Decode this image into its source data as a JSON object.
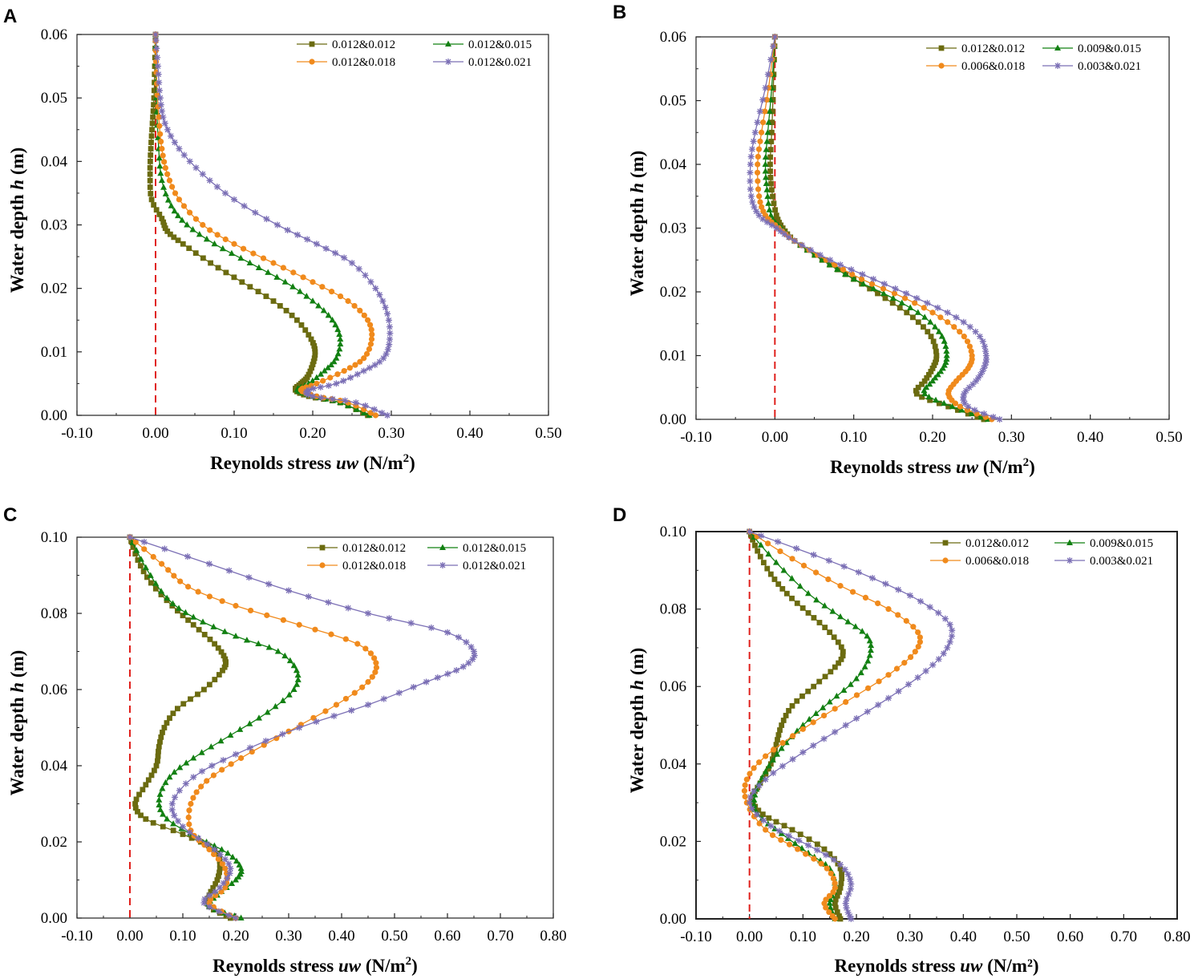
{
  "figure": {
    "panel_labels": [
      "A",
      "B",
      "C",
      "D"
    ]
  },
  "chart_data": [
    {
      "type": "line",
      "panel": "A",
      "xlabel_prefix": "Reynolds stress ",
      "xlabel_italic": "uw",
      "xlabel_unit_text": " (N/m",
      "xlabel_unit_sup": "2",
      "xlabel_unit_close": ")",
      "ylabel_prefix": "Water depth ",
      "ylabel_italic": "h",
      "ylabel_unit": " (m)",
      "xlim": [
        -0.1,
        0.5
      ],
      "ylim": [
        0,
        0.06
      ],
      "xticks": [
        "-0.10",
        "0.00",
        "0.10",
        "0.20",
        "0.30",
        "0.40",
        "0.50"
      ],
      "yticks": [
        "0.00",
        "0.01",
        "0.02",
        "0.03",
        "0.04",
        "0.05",
        "0.06"
      ],
      "reference_line_x": 0,
      "series": [
        {
          "name": "0.012&0.012",
          "color": "#6b6b10",
          "marker": "square",
          "x": [
            0.27,
            0.235,
            0.195,
            0.178,
            0.185,
            0.193,
            0.2,
            0.203,
            0.198,
            0.18,
            0.15,
            0.11,
            0.07,
            0.035,
            0.015,
            0.008,
            -0.005,
            -0.007,
            -0.006,
            -0.004,
            -0.002,
            -0.001,
            0.0
          ],
          "y": [
            0.0,
            0.002,
            0.003,
            0.004,
            0.005,
            0.006,
            0.008,
            0.01,
            0.012,
            0.015,
            0.018,
            0.021,
            0.024,
            0.027,
            0.029,
            0.031,
            0.034,
            0.038,
            0.042,
            0.046,
            0.05,
            0.055,
            0.06
          ]
        },
        {
          "name": "0.012&0.015",
          "color": "#128012",
          "marker": "triangle",
          "x": [
            0.272,
            0.235,
            0.2,
            0.18,
            0.195,
            0.215,
            0.23,
            0.235,
            0.225,
            0.2,
            0.165,
            0.12,
            0.075,
            0.04,
            0.02,
            0.008,
            0.004,
            0.001,
            0.0
          ],
          "y": [
            0.0,
            0.002,
            0.003,
            0.004,
            0.005,
            0.007,
            0.009,
            0.012,
            0.015,
            0.018,
            0.021,
            0.024,
            0.027,
            0.03,
            0.033,
            0.037,
            0.042,
            0.05,
            0.06
          ]
        },
        {
          "name": "0.012&0.018",
          "color": "#f08a1c",
          "marker": "circle",
          "x": [
            0.28,
            0.245,
            0.205,
            0.185,
            0.205,
            0.24,
            0.265,
            0.275,
            0.27,
            0.245,
            0.2,
            0.15,
            0.1,
            0.06,
            0.03,
            0.015,
            0.008,
            0.004,
            0.001,
            0.0
          ],
          "y": [
            0.0,
            0.002,
            0.003,
            0.004,
            0.005,
            0.007,
            0.009,
            0.012,
            0.015,
            0.018,
            0.021,
            0.024,
            0.027,
            0.03,
            0.034,
            0.038,
            0.042,
            0.047,
            0.054,
            0.06
          ]
        },
        {
          "name": "0.012&0.021",
          "color": "#7b6fb5",
          "marker": "star",
          "x": [
            0.295,
            0.255,
            0.2,
            0.195,
            0.23,
            0.265,
            0.29,
            0.298,
            0.295,
            0.28,
            0.25,
            0.205,
            0.155,
            0.1,
            0.06,
            0.03,
            0.012,
            0.006,
            0.003,
            0.0
          ],
          "y": [
            0.0,
            0.002,
            0.003,
            0.004,
            0.005,
            0.007,
            0.009,
            0.012,
            0.016,
            0.02,
            0.024,
            0.027,
            0.03,
            0.034,
            0.038,
            0.042,
            0.046,
            0.05,
            0.055,
            0.06
          ]
        }
      ]
    },
    {
      "type": "line",
      "panel": "B",
      "xlabel_prefix": "Reynolds stress ",
      "xlabel_italic": "uw",
      "xlabel_unit_text": " (N/m",
      "xlabel_unit_sup": "2",
      "xlabel_unit_close": ")",
      "ylabel_prefix": "Water depth ",
      "ylabel_italic": "h",
      "ylabel_unit": " (m)",
      "xlim": [
        -0.1,
        0.5
      ],
      "ylim": [
        0,
        0.06
      ],
      "xticks": [
        "-0.10",
        "0.00",
        "0.10",
        "0.20",
        "0.30",
        "0.40",
        "0.50"
      ],
      "yticks": [
        "0.00",
        "0.01",
        "0.02",
        "0.03",
        "0.04",
        "0.05",
        "0.06"
      ],
      "reference_line_x": 0,
      "series": [
        {
          "name": "0.012&0.012",
          "color": "#6b6b10",
          "marker": "square",
          "x": [
            0.265,
            0.22,
            0.18,
            0.19,
            0.2,
            0.205,
            0.198,
            0.175,
            0.14,
            0.1,
            0.06,
            0.025,
            0.01,
            0.002,
            -0.004,
            -0.006,
            -0.004,
            -0.002,
            0.0
          ],
          "y": [
            0.0,
            0.002,
            0.004,
            0.006,
            0.008,
            0.01,
            0.013,
            0.016,
            0.019,
            0.022,
            0.025,
            0.028,
            0.03,
            0.032,
            0.036,
            0.04,
            0.045,
            0.052,
            0.06
          ]
        },
        {
          "name": "0.009&0.015",
          "color": "#128012",
          "marker": "triangle",
          "x": [
            0.27,
            0.225,
            0.19,
            0.2,
            0.213,
            0.218,
            0.212,
            0.19,
            0.15,
            0.1,
            0.06,
            0.025,
            0.008,
            -0.005,
            -0.01,
            -0.012,
            -0.009,
            -0.004,
            0.0
          ],
          "y": [
            0.0,
            0.002,
            0.004,
            0.006,
            0.008,
            0.01,
            0.013,
            0.016,
            0.019,
            0.022,
            0.025,
            0.028,
            0.03,
            0.032,
            0.036,
            0.04,
            0.045,
            0.052,
            0.06
          ]
        },
        {
          "name": "0.006&0.018",
          "color": "#f08a1c",
          "marker": "circle",
          "x": [
            0.275,
            0.235,
            0.22,
            0.23,
            0.245,
            0.25,
            0.24,
            0.21,
            0.165,
            0.11,
            0.065,
            0.025,
            0.005,
            -0.012,
            -0.02,
            -0.022,
            -0.017,
            -0.008,
            0.0
          ],
          "y": [
            0.0,
            0.002,
            0.004,
            0.006,
            0.008,
            0.01,
            0.013,
            0.016,
            0.019,
            0.022,
            0.025,
            0.028,
            0.03,
            0.032,
            0.035,
            0.04,
            0.045,
            0.052,
            0.06
          ]
        },
        {
          "name": "0.003&0.021",
          "color": "#7b6fb5",
          "marker": "star",
          "x": [
            0.285,
            0.245,
            0.24,
            0.255,
            0.265,
            0.268,
            0.26,
            0.23,
            0.18,
            0.125,
            0.07,
            0.025,
            0.002,
            -0.02,
            -0.03,
            -0.031,
            -0.025,
            -0.012,
            0.0
          ],
          "y": [
            0.0,
            0.002,
            0.004,
            0.006,
            0.008,
            0.01,
            0.013,
            0.016,
            0.019,
            0.022,
            0.025,
            0.028,
            0.03,
            0.032,
            0.035,
            0.04,
            0.045,
            0.052,
            0.06
          ]
        }
      ]
    },
    {
      "type": "line",
      "panel": "C",
      "xlabel_prefix": "Reynolds stress ",
      "xlabel_italic": "uw",
      "xlabel_unit_text": " (N/m",
      "xlabel_unit_sup": "2",
      "xlabel_unit_close": ")",
      "ylabel_prefix": "Water depth ",
      "ylabel_italic": "h",
      "ylabel_unit": " (m)",
      "xlim": [
        -0.1,
        0.8
      ],
      "ylim": [
        0,
        0.1
      ],
      "xticks": [
        "-0.10",
        "0.00",
        "0.10",
        "0.20",
        "0.30",
        "0.40",
        "0.50",
        "0.60",
        "0.70",
        "0.80"
      ],
      "yticks": [
        "0.00",
        "0.02",
        "0.04",
        "0.06",
        "0.08",
        "0.10"
      ],
      "reference_line_x": 0,
      "series": [
        {
          "name": "0.012&0.012",
          "color": "#6b6b10",
          "marker": "square",
          "x": [
            0.19,
            0.15,
            0.15,
            0.165,
            0.17,
            0.16,
            0.1,
            0.03,
            0.01,
            0.03,
            0.05,
            0.055,
            0.065,
            0.09,
            0.14,
            0.175,
            0.18,
            0.16,
            0.12,
            0.08,
            0.04,
            0.015,
            0.0
          ],
          "y": [
            0.0,
            0.003,
            0.006,
            0.01,
            0.014,
            0.018,
            0.022,
            0.026,
            0.03,
            0.035,
            0.04,
            0.045,
            0.05,
            0.055,
            0.06,
            0.065,
            0.068,
            0.072,
            0.077,
            0.082,
            0.088,
            0.094,
            0.1
          ]
        },
        {
          "name": "0.012&0.015",
          "color": "#128012",
          "marker": "triangle",
          "x": [
            0.21,
            0.15,
            0.165,
            0.2,
            0.21,
            0.185,
            0.13,
            0.07,
            0.055,
            0.075,
            0.12,
            0.19,
            0.26,
            0.31,
            0.315,
            0.28,
            0.2,
            0.12,
            0.07,
            0.03,
            0.0
          ],
          "y": [
            0.0,
            0.003,
            0.006,
            0.01,
            0.013,
            0.017,
            0.021,
            0.026,
            0.031,
            0.037,
            0.042,
            0.048,
            0.054,
            0.06,
            0.065,
            0.07,
            0.074,
            0.079,
            0.084,
            0.092,
            0.1
          ]
        },
        {
          "name": "0.012&0.018",
          "color": "#f08a1c",
          "marker": "circle",
          "x": [
            0.2,
            0.15,
            0.18,
            0.18,
            0.15,
            0.115,
            0.115,
            0.145,
            0.21,
            0.3,
            0.39,
            0.45,
            0.465,
            0.43,
            0.32,
            0.2,
            0.11,
            0.06,
            0.0
          ],
          "y": [
            0.0,
            0.004,
            0.008,
            0.013,
            0.018,
            0.023,
            0.03,
            0.036,
            0.042,
            0.049,
            0.056,
            0.062,
            0.067,
            0.072,
            0.077,
            0.082,
            0.087,
            0.093,
            0.1
          ]
        },
        {
          "name": "0.012&0.021",
          "color": "#7b6fb5",
          "marker": "star",
          "x": [
            0.2,
            0.14,
            0.17,
            0.19,
            0.16,
            0.1,
            0.08,
            0.12,
            0.2,
            0.32,
            0.45,
            0.56,
            0.63,
            0.65,
            0.6,
            0.45,
            0.3,
            0.15,
            0.0
          ],
          "y": [
            0.0,
            0.004,
            0.008,
            0.013,
            0.018,
            0.024,
            0.03,
            0.037,
            0.043,
            0.05,
            0.056,
            0.062,
            0.066,
            0.07,
            0.075,
            0.08,
            0.086,
            0.093,
            0.1
          ]
        }
      ]
    },
    {
      "type": "line",
      "panel": "D",
      "xlabel_prefix": "Reynolds stress ",
      "xlabel_italic": "uw",
      "xlabel_unit_text": " (N/m²)",
      "xlabel_unit_sup": "",
      "xlabel_unit_close": "",
      "ylabel_prefix": "Water depth  ",
      "ylabel_italic": "h",
      "ylabel_unit": " (m)",
      "xlim": [
        -0.1,
        0.8
      ],
      "ylim": [
        0,
        0.1
      ],
      "xticks": [
        "-0.10",
        "0.00",
        "0.10",
        "0.20",
        "0.30",
        "0.40",
        "0.50",
        "0.60",
        "0.70",
        "0.80"
      ],
      "yticks": [
        "0.00",
        "0.02",
        "0.04",
        "0.06",
        "0.08",
        "0.10"
      ],
      "reference_line_x": 0,
      "series": [
        {
          "name": "0.012&0.012",
          "color": "#6b6b10",
          "marker": "square",
          "x": [
            0.17,
            0.16,
            0.17,
            0.17,
            0.14,
            0.08,
            0.025,
            0.005,
            0.02,
            0.04,
            0.05,
            0.06,
            0.08,
            0.12,
            0.16,
            0.175,
            0.15,
            0.11,
            0.07,
            0.04,
            0.015,
            0.0
          ],
          "y": [
            0.0,
            0.004,
            0.008,
            0.013,
            0.018,
            0.023,
            0.027,
            0.031,
            0.035,
            0.04,
            0.045,
            0.05,
            0.055,
            0.06,
            0.065,
            0.069,
            0.074,
            0.079,
            0.084,
            0.089,
            0.095,
            0.1
          ]
        },
        {
          "name": "0.009&0.015",
          "color": "#128012",
          "marker": "triangle",
          "x": [
            0.16,
            0.15,
            0.16,
            0.15,
            0.11,
            0.06,
            0.015,
            0.01,
            0.03,
            0.06,
            0.1,
            0.15,
            0.2,
            0.225,
            0.22,
            0.17,
            0.11,
            0.05,
            0.0
          ],
          "y": [
            0.0,
            0.004,
            0.008,
            0.013,
            0.017,
            0.022,
            0.027,
            0.032,
            0.038,
            0.044,
            0.05,
            0.056,
            0.062,
            0.068,
            0.073,
            0.078,
            0.084,
            0.092,
            0.1
          ]
        },
        {
          "name": "0.006&0.018",
          "color": "#f08a1c",
          "marker": "circle",
          "x": [
            0.16,
            0.14,
            0.16,
            0.145,
            0.09,
            0.03,
            -0.005,
            -0.005,
            0.03,
            0.1,
            0.18,
            0.26,
            0.31,
            0.315,
            0.26,
            0.17,
            0.08,
            0.0
          ],
          "y": [
            0.0,
            0.004,
            0.008,
            0.013,
            0.018,
            0.023,
            0.03,
            0.036,
            0.042,
            0.049,
            0.056,
            0.063,
            0.069,
            0.074,
            0.08,
            0.086,
            0.093,
            0.1
          ]
        },
        {
          "name": "0.003&0.021",
          "color": "#7b6fb5",
          "marker": "star",
          "x": [
            0.19,
            0.18,
            0.19,
            0.17,
            0.11,
            0.04,
            0.0,
            0.03,
            0.1,
            0.18,
            0.26,
            0.33,
            0.37,
            0.375,
            0.32,
            0.23,
            0.12,
            0.0
          ],
          "y": [
            0.0,
            0.004,
            0.009,
            0.014,
            0.019,
            0.024,
            0.03,
            0.036,
            0.043,
            0.05,
            0.057,
            0.064,
            0.07,
            0.076,
            0.082,
            0.088,
            0.094,
            0.1
          ]
        }
      ]
    }
  ]
}
